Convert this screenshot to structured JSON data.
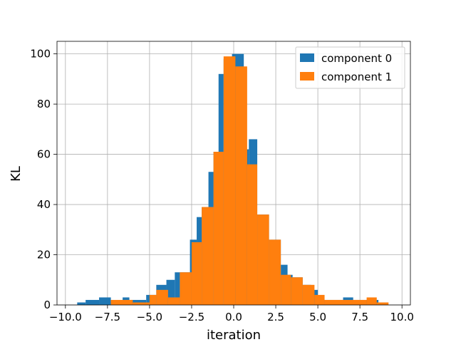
{
  "chart_data": {
    "type": "bar",
    "title": "",
    "xlabel": "iteration",
    "ylabel": "KL",
    "xlim": [
      -10.5,
      10.5
    ],
    "ylim": [
      0,
      105
    ],
    "grid": true,
    "legend_position": "top-right",
    "xticks": [
      -10.0,
      -7.5,
      -5.0,
      -2.5,
      0.0,
      2.5,
      5.0,
      7.5,
      10.0
    ],
    "xtick_labels": [
      "−10.0",
      "−7.5",
      "−5.0",
      "−2.5",
      "0.0",
      "2.5",
      "5.0",
      "7.5",
      "10.0"
    ],
    "yticks": [
      0,
      20,
      40,
      60,
      80,
      100
    ],
    "ytick_labels": [
      "0",
      "20",
      "40",
      "60",
      "80",
      "100"
    ],
    "series": [
      {
        "name": "component 0",
        "color": "#1f77b4",
        "bins": [
          {
            "x0": -9.3,
            "x1": -8.8,
            "count": 1
          },
          {
            "x0": -8.8,
            "x1": -8.0,
            "count": 2
          },
          {
            "x0": -8.0,
            "x1": -7.3,
            "count": 3
          },
          {
            "x0": -7.3,
            "x1": -6.6,
            "count": 1
          },
          {
            "x0": -6.6,
            "x1": -6.2,
            "count": 3
          },
          {
            "x0": -6.2,
            "x1": -5.8,
            "count": 2
          },
          {
            "x0": -5.8,
            "x1": -5.2,
            "count": 2
          },
          {
            "x0": -5.2,
            "x1": -4.6,
            "count": 4
          },
          {
            "x0": -4.6,
            "x1": -4.0,
            "count": 8
          },
          {
            "x0": -4.0,
            "x1": -3.5,
            "count": 10
          },
          {
            "x0": -3.5,
            "x1": -3.2,
            "count": 13
          },
          {
            "x0": -3.2,
            "x1": -2.6,
            "count": 13
          },
          {
            "x0": -2.6,
            "x1": -2.2,
            "count": 26
          },
          {
            "x0": -2.2,
            "x1": -1.9,
            "count": 35
          },
          {
            "x0": -1.9,
            "x1": -1.5,
            "count": 39
          },
          {
            "x0": -1.5,
            "x1": -1.2,
            "count": 53
          },
          {
            "x0": -1.2,
            "x1": -0.9,
            "count": 61
          },
          {
            "x0": -0.9,
            "x1": -0.6,
            "count": 92
          },
          {
            "x0": -0.6,
            "x1": -0.1,
            "count": 98
          },
          {
            "x0": -0.1,
            "x1": 0.6,
            "count": 100
          },
          {
            "x0": 0.6,
            "x1": 0.9,
            "count": 62
          },
          {
            "x0": 0.9,
            "x1": 1.4,
            "count": 66
          },
          {
            "x0": 1.4,
            "x1": 2.1,
            "count": 36
          },
          {
            "x0": 2.1,
            "x1": 2.8,
            "count": 26
          },
          {
            "x0": 2.8,
            "x1": 3.2,
            "count": 16
          },
          {
            "x0": 3.2,
            "x1": 3.5,
            "count": 12
          },
          {
            "x0": 3.5,
            "x1": 4.1,
            "count": 11
          },
          {
            "x0": 4.1,
            "x1": 4.6,
            "count": 8
          },
          {
            "x0": 4.6,
            "x1": 5.0,
            "count": 6
          },
          {
            "x0": 5.0,
            "x1": 6.5,
            "count": 2
          },
          {
            "x0": 6.5,
            "x1": 7.1,
            "count": 3
          },
          {
            "x0": 7.1,
            "x1": 8.6,
            "count": 2
          }
        ]
      },
      {
        "name": "component 1",
        "color": "#ff7f0e",
        "bins": [
          {
            "x0": -7.3,
            "x1": -6.0,
            "count": 2
          },
          {
            "x0": -6.0,
            "x1": -5.0,
            "count": 1
          },
          {
            "x0": -5.0,
            "x1": -4.6,
            "count": 4
          },
          {
            "x0": -4.6,
            "x1": -3.9,
            "count": 6
          },
          {
            "x0": -3.9,
            "x1": -3.2,
            "count": 3
          },
          {
            "x0": -3.2,
            "x1": -2.5,
            "count": 13
          },
          {
            "x0": -2.5,
            "x1": -1.9,
            "count": 25
          },
          {
            "x0": -1.9,
            "x1": -1.2,
            "count": 39
          },
          {
            "x0": -1.2,
            "x1": -0.6,
            "count": 61
          },
          {
            "x0": -0.6,
            "x1": 0.1,
            "count": 99
          },
          {
            "x0": 0.1,
            "x1": 0.8,
            "count": 95
          },
          {
            "x0": 0.8,
            "x1": 1.4,
            "count": 56
          },
          {
            "x0": 1.4,
            "x1": 2.1,
            "count": 36
          },
          {
            "x0": 2.1,
            "x1": 2.8,
            "count": 26
          },
          {
            "x0": 2.8,
            "x1": 3.4,
            "count": 12
          },
          {
            "x0": 3.4,
            "x1": 4.1,
            "count": 11
          },
          {
            "x0": 4.1,
            "x1": 4.8,
            "count": 8
          },
          {
            "x0": 4.8,
            "x1": 5.4,
            "count": 4
          },
          {
            "x0": 5.4,
            "x1": 7.9,
            "count": 2
          },
          {
            "x0": 7.9,
            "x1": 8.5,
            "count": 3
          },
          {
            "x0": 8.5,
            "x1": 9.2,
            "count": 1
          }
        ]
      }
    ]
  }
}
